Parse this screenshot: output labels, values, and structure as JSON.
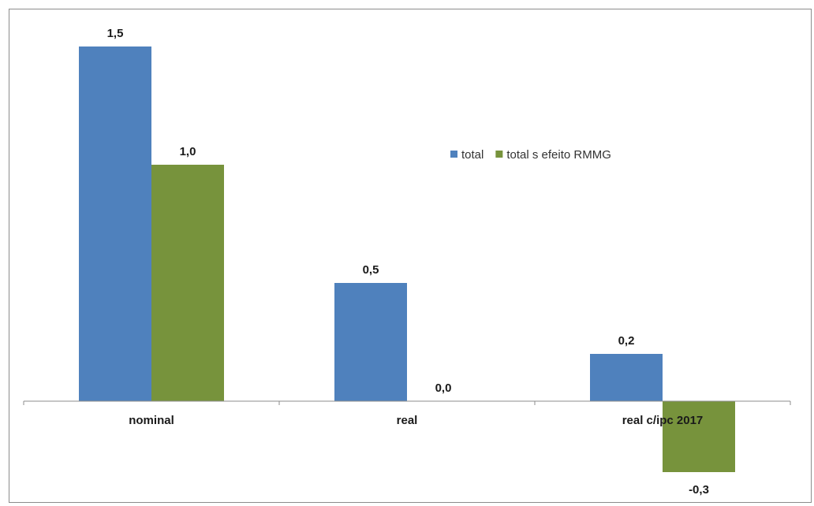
{
  "chart_data": {
    "type": "bar",
    "categories": [
      "nominal",
      "real",
      "real c/ipc 2017"
    ],
    "series": [
      {
        "name": "total",
        "values": [
          1.5,
          0.5,
          0.2
        ],
        "labels": [
          "1,5",
          "0,5",
          "0,2"
        ],
        "color": "#4f81bd"
      },
      {
        "name": "total s efeito RMMG",
        "values": [
          1.0,
          0.0,
          -0.3
        ],
        "labels": [
          "1,0",
          "0,0",
          "-0,3"
        ],
        "color": "#77933c"
      }
    ],
    "ylim": [
      -0.35,
      1.6
    ],
    "grid": false,
    "legend_position": "top-right"
  }
}
